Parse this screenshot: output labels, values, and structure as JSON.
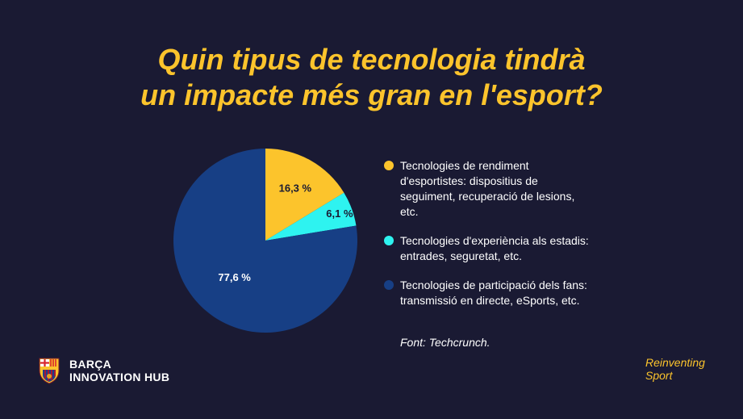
{
  "title": {
    "line1": "Quin tipus de tecnologia tindrà",
    "line2": "un impacte més gran en l'esport?"
  },
  "chart_data": {
    "type": "pie",
    "title": "Quin tipus de tecnologia tindrà un impacte més gran en l'esport?",
    "slices": [
      {
        "label": "Tecnologies de rendiment d'esportistes: dispositius de seguiment, recuperació de lesions, etc.",
        "value": 16.3,
        "display": "16,3 %",
        "color": "#fcc42c"
      },
      {
        "label": "Tecnologies d'experiència als estadis: entrades, seguretat, etc.",
        "value": 6.1,
        "display": "6,1 %",
        "color": "#2ef3f0"
      },
      {
        "label": "Tecnologies de participació dels fans: transmissió en directe, eSports, etc.",
        "value": 77.6,
        "display": "77,6 %",
        "color": "#173f85"
      }
    ],
    "legend_position": "right"
  },
  "legend": [
    "Tecnologies de rendiment d'esportistes: dispositius de seguiment, recuperació de lesions, etc.",
    "Tecnologies d'experiència als estadis: entrades, seguretat, etc.",
    "Tecnologies de participació dels fans: transmissió en directe, eSports, etc."
  ],
  "source": "Font: Techcrunch.",
  "brand": {
    "line1": "BARÇA",
    "line2": "INNOVATION HUB",
    "logo_icon": "fcb-crest-icon"
  },
  "tagline": {
    "line1": "Reinventing",
    "line2": "Sport"
  },
  "colors": {
    "background": "#1a1a33",
    "accent": "#fcc42c"
  }
}
